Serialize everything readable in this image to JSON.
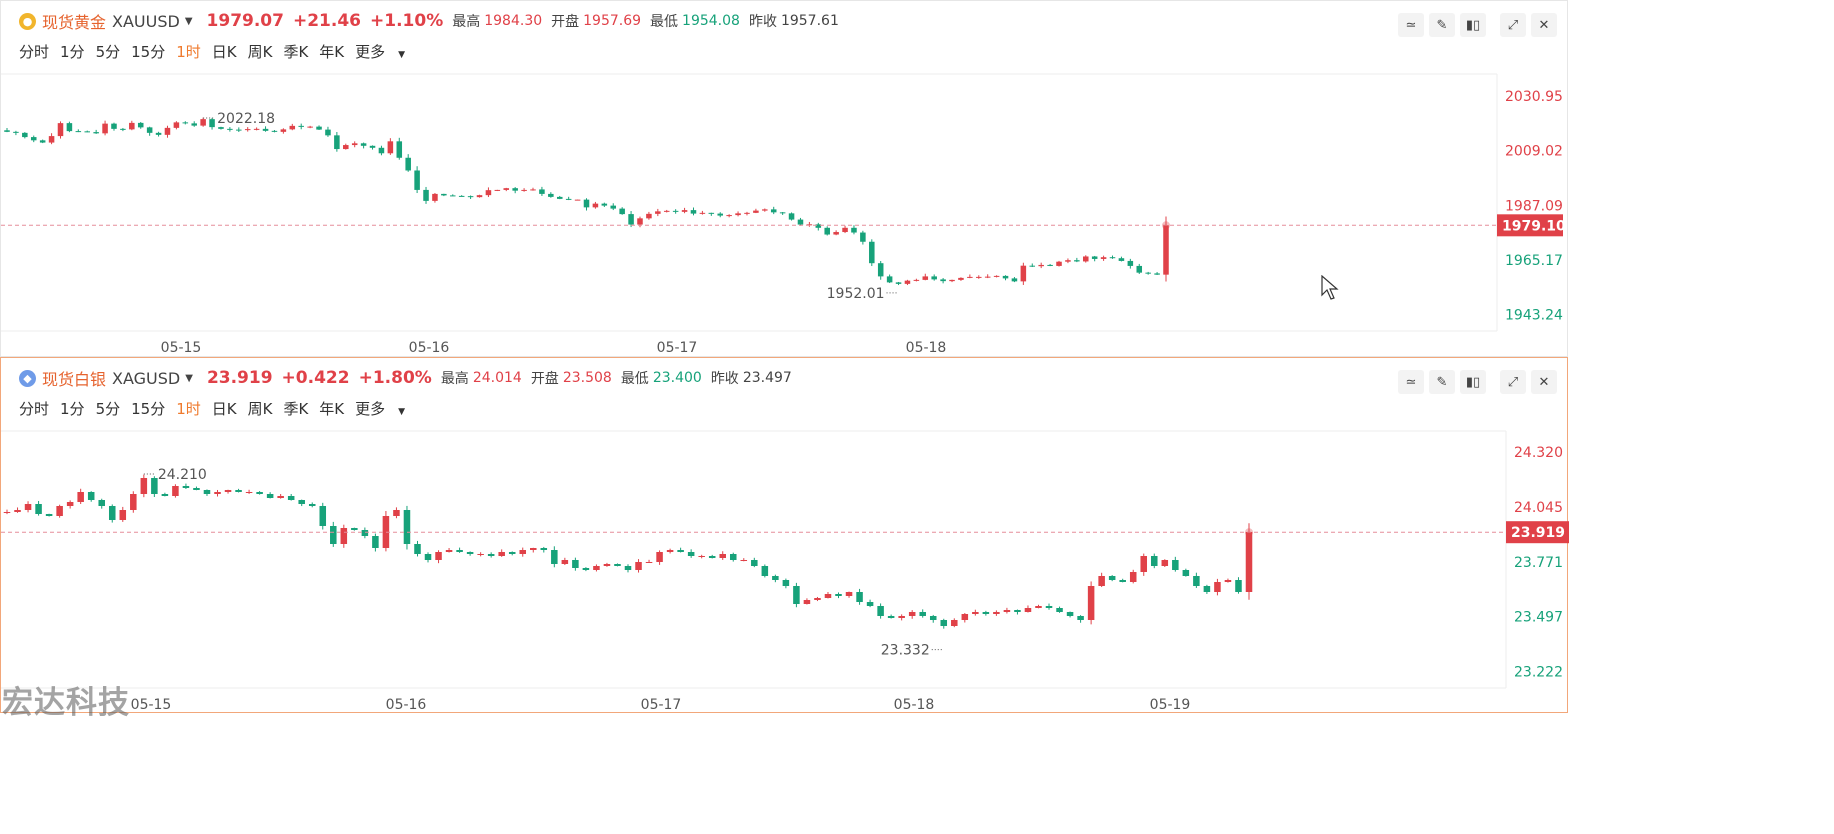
{
  "intervals": [
    "分时",
    "1分",
    "5分",
    "15分",
    "1时",
    "日K",
    "周K",
    "季K",
    "年K",
    "更多"
  ],
  "active_interval": "1时",
  "watermark": "宏达科技",
  "toolbar_icons": [
    "indicator-icon",
    "draw-icon",
    "candlestick-icon",
    "expand-icon",
    "close-icon"
  ],
  "colors": {
    "up": "#e04148",
    "down": "#17a27a",
    "accent": "#ef7b2f",
    "crosshair": "#e58e9a"
  },
  "gold": {
    "name": "现货黄金",
    "code": "XAUUSD",
    "price": "1979.07",
    "change": "+21.46",
    "change_pct": "+1.10%",
    "high_label": "最高",
    "high": "1984.30",
    "open_label": "开盘",
    "open": "1957.69",
    "low_label": "最低",
    "low": "1954.08",
    "prev_label": "昨收",
    "prev": "1957.61"
  },
  "silver": {
    "name": "现货白银",
    "code": "XAGUSD",
    "price": "23.919",
    "change": "+0.422",
    "change_pct": "+1.80%",
    "high_label": "最高",
    "high": "24.014",
    "open_label": "开盘",
    "open": "23.508",
    "low_label": "最低",
    "low": "23.400",
    "prev_label": "昨收",
    "prev": "23.497"
  },
  "chart_data": [
    {
      "type": "candlestick",
      "symbol": "XAUUSD",
      "x_ticks": [
        "05-15",
        "05-16",
        "05-17",
        "05-18"
      ],
      "y_ticks": [
        "2030.95",
        "2009.02",
        "1987.09",
        "1965.17",
        "1943.24"
      ],
      "y_tick_values": [
        2030.95,
        2009.02,
        1987.09,
        1965.17,
        1943.24
      ],
      "ylim": [
        1939.9,
        2035.4
      ],
      "current_price_label": "1979.10",
      "current_price": 1979.1,
      "max_annotation": "2022.18",
      "max_value": 2022.18,
      "min_annotation": "1952.01",
      "min_value": 1952.01,
      "closes": [
        2016.6,
        2016.2,
        2014.5,
        2013.2,
        2012.3,
        2014.9,
        2020.1,
        2016.9,
        2016.8,
        2016.5,
        2016.0,
        2019.9,
        2017.8,
        2017.6,
        2020.2,
        2018.4,
        2016.2,
        2015.4,
        2018.2,
        2020.4,
        2020.0,
        2019.1,
        2021.7,
        2018.5,
        2017.8,
        2017.5,
        2017.4,
        2017.7,
        2017.8,
        2017.0,
        2016.6,
        2017.6,
        2019.0,
        2018.6,
        2018.7,
        2017.5,
        2015.2,
        2009.7,
        2011.3,
        2012.0,
        2011.0,
        2010.2,
        2008.0,
        2012.8,
        2006.2,
        2001.1,
        1993.3,
        1988.9,
        1991.7,
        1991.1,
        1990.9,
        1990.8,
        1990.4,
        1991.2,
        1993.2,
        1993.3,
        1994.0,
        1993.0,
        1993.3,
        1993.5,
        1991.7,
        1990.5,
        1989.7,
        1989.3,
        1989.4,
        1986.3,
        1987.8,
        1987.0,
        1985.8,
        1983.6,
        1979.4,
        1981.9,
        1983.7,
        1984.7,
        1984.9,
        1984.5,
        1985.2,
        1983.8,
        1984.1,
        1983.8,
        1983.0,
        1983.2,
        1983.9,
        1984.1,
        1985.0,
        1985.5,
        1984.3,
        1983.9,
        1981.4,
        1979.4,
        1979.5,
        1978.1,
        1975.4,
        1976.4,
        1978.1,
        1976.2,
        1972.5,
        1963.9,
        1958.6,
        1956.2,
        1955.6,
        1956.9,
        1957.2,
        1958.6,
        1957.4,
        1956.7,
        1957.2,
        1958.0,
        1958.4,
        1958.4,
        1958.5,
        1958.8,
        1957.8,
        1956.6,
        1962.9,
        1962.7,
        1963.2,
        1962.8,
        1964.5,
        1965.1,
        1964.6,
        1966.6,
        1965.6,
        1966.3,
        1965.9,
        1964.8,
        1962.8,
        1960.1,
        1959.8,
        1959.3,
        1979.1
      ]
    },
    {
      "type": "candlestick",
      "symbol": "XAGUSD",
      "x_ticks": [
        "05-15",
        "05-16",
        "05-17",
        "05-18",
        "05-19"
      ],
      "y_ticks": [
        "24.320",
        "24.045",
        "23.771",
        "23.497",
        "23.222"
      ],
      "y_tick_values": [
        24.32,
        24.045,
        23.771,
        23.497,
        23.222
      ],
      "ylim": [
        23.18,
        24.37
      ],
      "current_price_label": "23.919",
      "current_price": 23.919,
      "max_annotation": "24.210",
      "max_value": 24.21,
      "min_annotation": "23.332",
      "min_value": 23.332,
      "closes": [
        24.02,
        24.03,
        24.06,
        24.01,
        24.0,
        24.05,
        24.07,
        24.12,
        24.08,
        24.05,
        23.98,
        24.03,
        24.11,
        24.19,
        24.11,
        24.1,
        24.15,
        24.14,
        24.13,
        24.11,
        24.12,
        24.13,
        24.12,
        24.12,
        24.11,
        24.09,
        24.1,
        24.08,
        24.06,
        24.05,
        23.95,
        23.86,
        23.94,
        23.93,
        23.9,
        23.84,
        24.0,
        24.03,
        23.86,
        23.81,
        23.78,
        23.82,
        23.83,
        23.82,
        23.81,
        23.81,
        23.8,
        23.82,
        23.81,
        23.83,
        23.84,
        23.83,
        23.76,
        23.78,
        23.74,
        23.73,
        23.75,
        23.76,
        23.75,
        23.73,
        23.77,
        23.77,
        23.82,
        23.83,
        23.82,
        23.8,
        23.8,
        23.79,
        23.81,
        23.78,
        23.78,
        23.75,
        23.7,
        23.68,
        23.65,
        23.56,
        23.58,
        23.59,
        23.61,
        23.6,
        23.62,
        23.57,
        23.55,
        23.5,
        23.49,
        23.5,
        23.52,
        23.5,
        23.48,
        23.45,
        23.48,
        23.51,
        23.52,
        23.51,
        23.52,
        23.53,
        23.52,
        23.54,
        23.55,
        23.54,
        23.52,
        23.5,
        23.48,
        23.65,
        23.7,
        23.68,
        23.67,
        23.72,
        23.8,
        23.75,
        23.78,
        23.73,
        23.7,
        23.65,
        23.62,
        23.67,
        23.68,
        23.62,
        23.92
      ]
    }
  ]
}
